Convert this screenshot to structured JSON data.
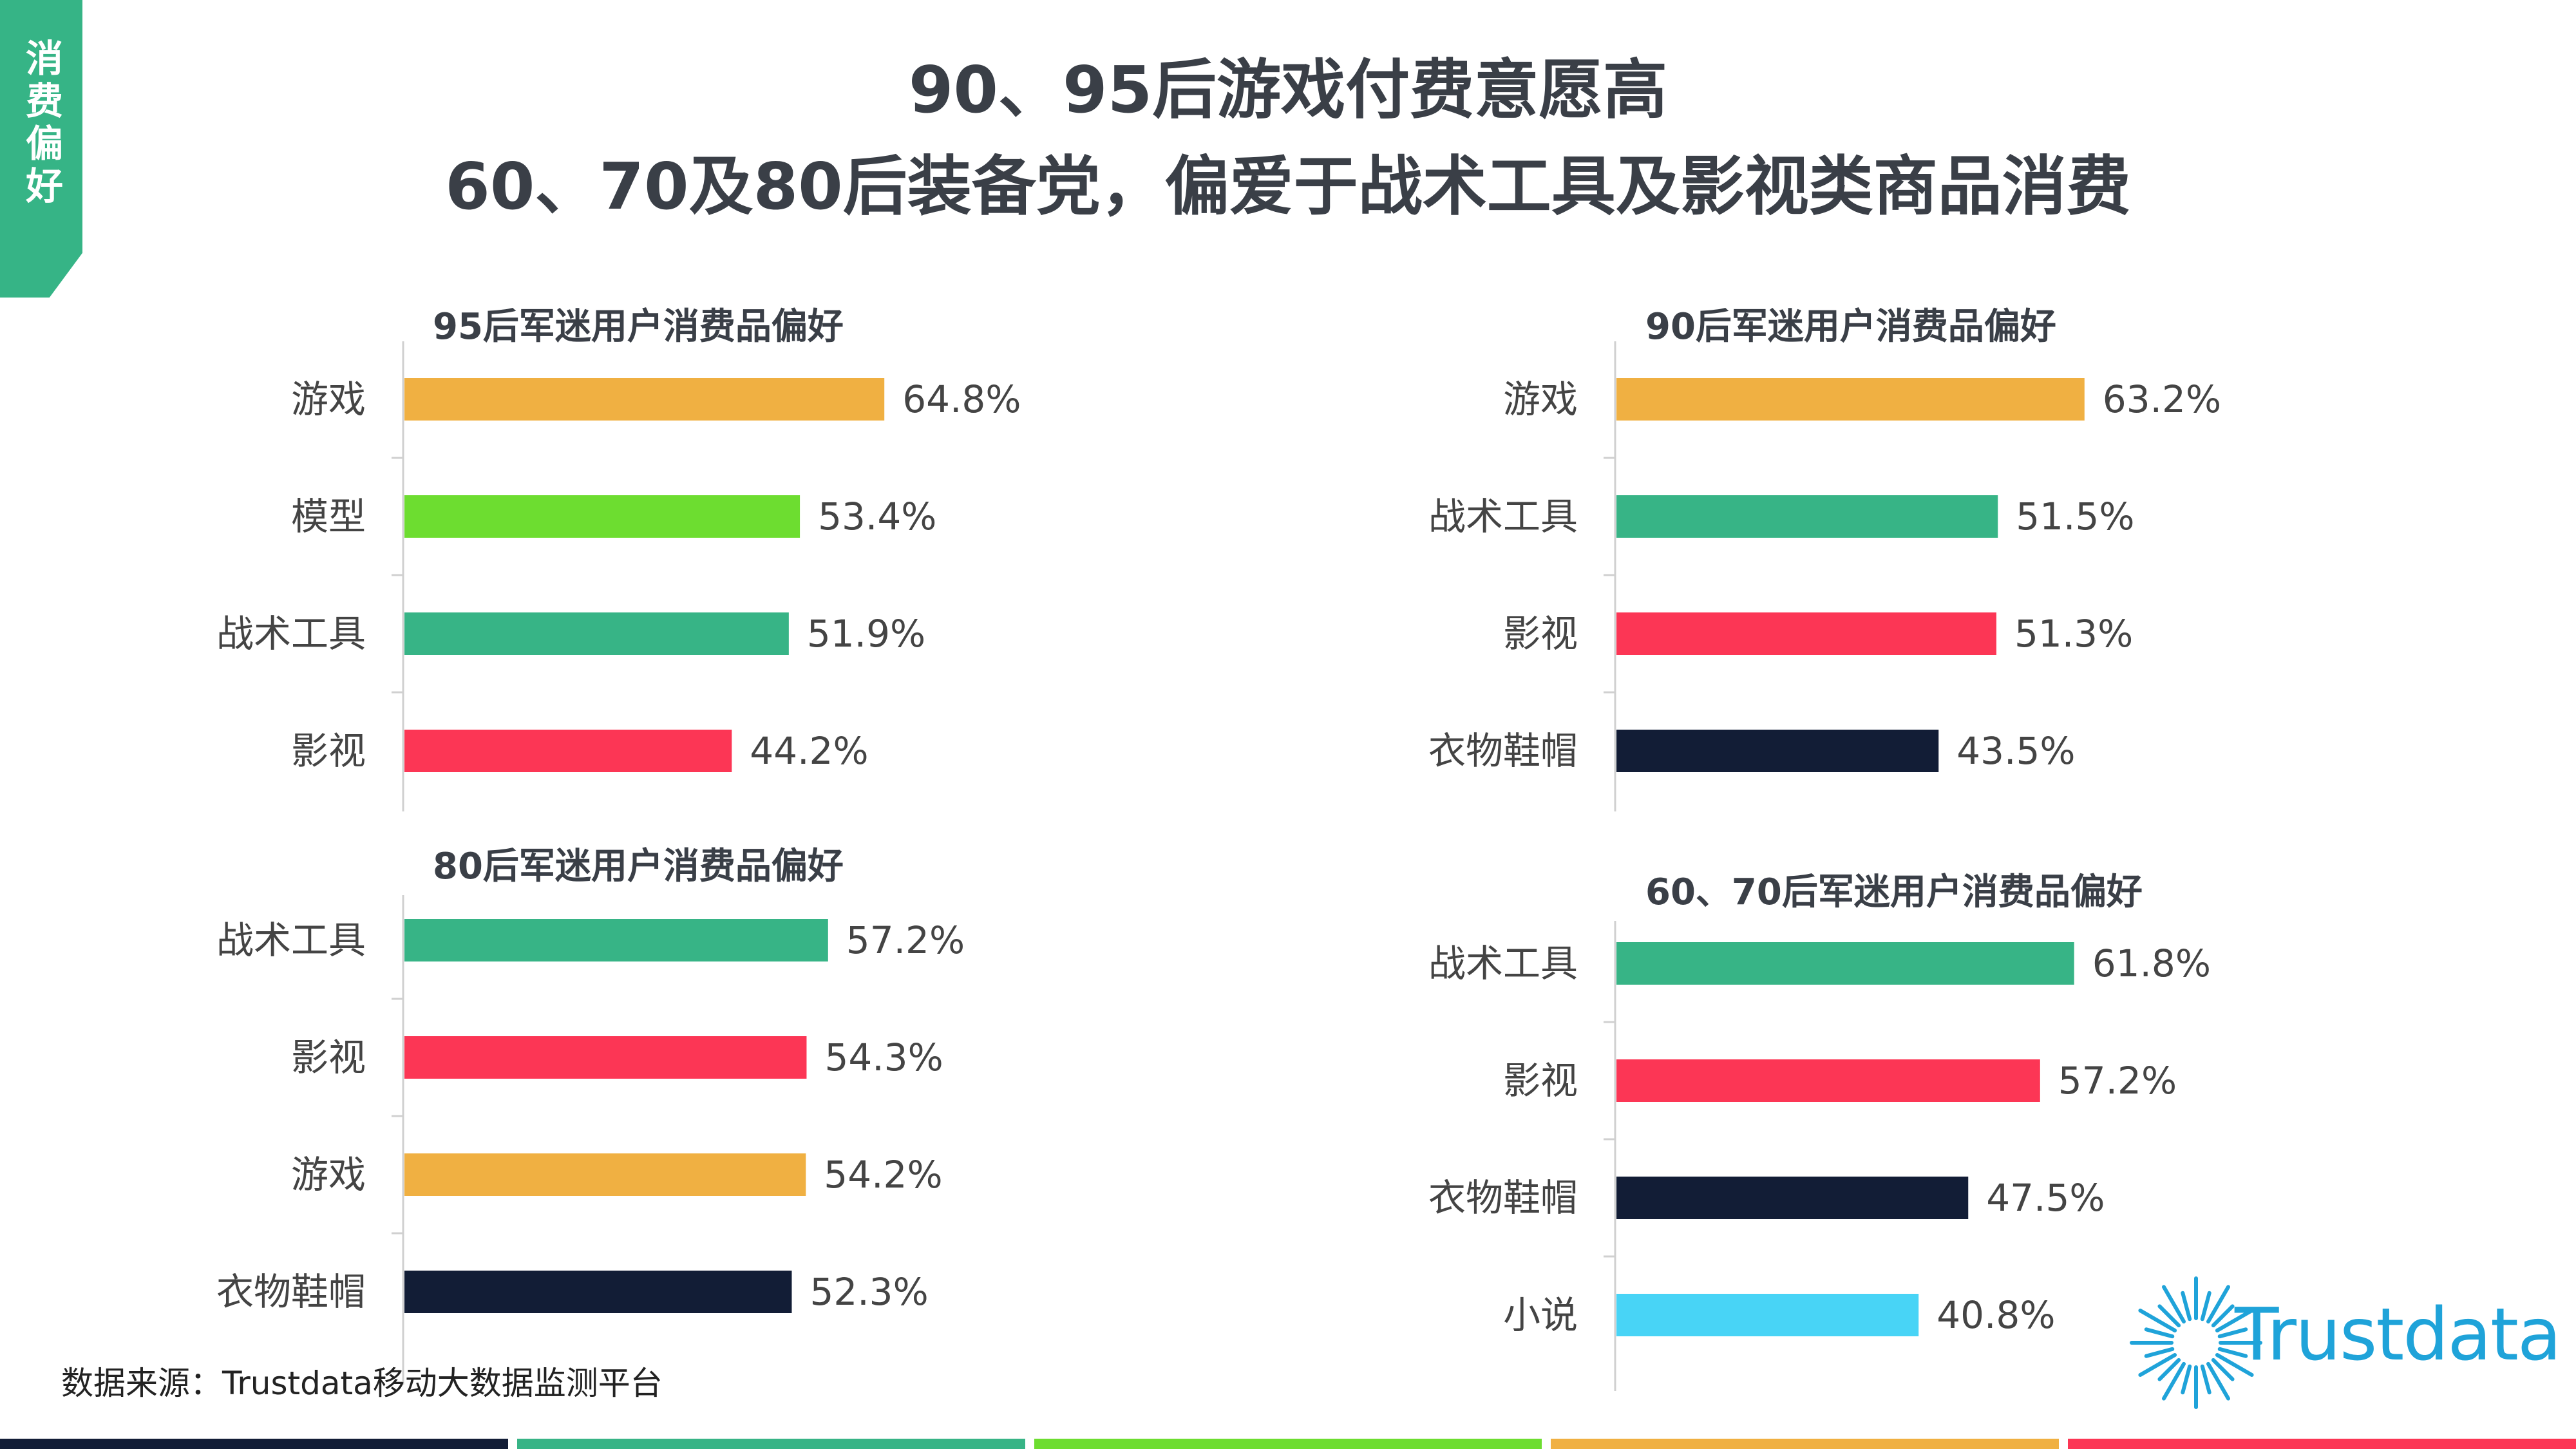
{
  "side_tab": "消费偏好",
  "title_line1": "90、95后游戏付费意愿高",
  "title_line2": "60、70及80后装备党，偏爱于战术工具及影视类商品消费",
  "source": "数据来源：Trustdata移动大数据监测平台",
  "logo_text": "Trustdata",
  "colors": {
    "game": "#f0b042",
    "model": "#6ddd30",
    "tactical": "#37b486",
    "film": "#fc3655",
    "clothing": "#121d36",
    "novel": "#48d4f6",
    "logo": "#1fa3d9",
    "tab": "#36b486"
  },
  "footer_colors": [
    "#121d36",
    "#37b486",
    "#6ddd30",
    "#f0b042",
    "#fc3655"
  ],
  "chart_data": [
    {
      "type": "bar",
      "orientation": "horizontal",
      "title": "95后军迷用户消费品偏好",
      "categories": [
        "游戏",
        "模型",
        "战术工具",
        "影视"
      ],
      "values": [
        64.8,
        53.4,
        51.9,
        44.2
      ],
      "labels": [
        "64.8%",
        "53.4%",
        "51.9%",
        "44.2%"
      ],
      "colors": [
        "#f0b042",
        "#6ddd30",
        "#37b486",
        "#fc3655"
      ]
    },
    {
      "type": "bar",
      "orientation": "horizontal",
      "title": "90后军迷用户消费品偏好",
      "categories": [
        "游戏",
        "战术工具",
        "影视",
        "衣物鞋帽"
      ],
      "values": [
        63.2,
        51.5,
        51.3,
        43.5
      ],
      "labels": [
        "63.2%",
        "51.5%",
        "51.3%",
        "43.5%"
      ],
      "colors": [
        "#f0b042",
        "#37b486",
        "#fc3655",
        "#121d36"
      ]
    },
    {
      "type": "bar",
      "orientation": "horizontal",
      "title": "80后军迷用户消费品偏好",
      "categories": [
        "战术工具",
        "影视",
        "游戏",
        "衣物鞋帽"
      ],
      "values": [
        57.2,
        54.3,
        54.2,
        52.3
      ],
      "labels": [
        "57.2%",
        "54.3%",
        "54.2%",
        "52.3%"
      ],
      "colors": [
        "#37b486",
        "#fc3655",
        "#f0b042",
        "#121d36"
      ]
    },
    {
      "type": "bar",
      "orientation": "horizontal",
      "title": "60、70后军迷用户消费品偏好",
      "categories": [
        "战术工具",
        "影视",
        "衣物鞋帽",
        "小说"
      ],
      "values": [
        61.8,
        57.2,
        47.5,
        40.8
      ],
      "labels": [
        "61.8%",
        "57.2%",
        "47.5%",
        "40.8%"
      ],
      "colors": [
        "#37b486",
        "#fc3655",
        "#121d36",
        "#48d4f6"
      ]
    }
  ]
}
